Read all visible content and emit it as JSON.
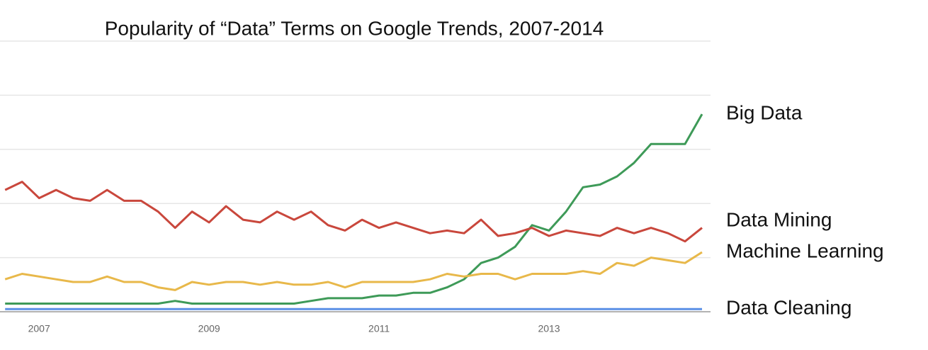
{
  "chart_data": {
    "type": "line",
    "title": "Popularity of “Data” Terms on Google Trends, 2007-2014",
    "x": [
      2006.6,
      2006.8,
      2007.0,
      2007.2,
      2007.4,
      2007.6,
      2007.8,
      2008.0,
      2008.2,
      2008.4,
      2008.6,
      2008.8,
      2009.0,
      2009.2,
      2009.4,
      2009.6,
      2009.8,
      2010.0,
      2010.2,
      2010.4,
      2010.6,
      2010.8,
      2011.0,
      2011.2,
      2011.4,
      2011.6,
      2011.8,
      2012.0,
      2012.2,
      2012.4,
      2012.6,
      2012.8,
      2013.0,
      2013.2,
      2013.4,
      2013.6,
      2013.8,
      2014.0,
      2014.2,
      2014.4,
      2014.6,
      2014.8
    ],
    "series": [
      {
        "name": "Big Data",
        "color": "#3e9a58",
        "values": [
          3,
          3,
          3,
          3,
          3,
          3,
          3,
          3,
          3,
          3,
          4,
          3,
          3,
          3,
          3,
          3,
          3,
          3,
          4,
          5,
          5,
          5,
          6,
          6,
          7,
          7,
          9,
          12,
          18,
          20,
          24,
          32,
          30,
          37,
          46,
          47,
          50,
          55,
          62,
          62,
          62,
          73
        ]
      },
      {
        "name": "Data Mining",
        "color": "#c9473c",
        "values": [
          45,
          48,
          42,
          45,
          42,
          41,
          45,
          41,
          41,
          37,
          31,
          37,
          33,
          39,
          34,
          33,
          37,
          34,
          37,
          32,
          30,
          34,
          31,
          33,
          31,
          29,
          30,
          29,
          34,
          28,
          29,
          31,
          28,
          30,
          29,
          28,
          31,
          29,
          31,
          29,
          26,
          31
        ]
      },
      {
        "name": "Machine Learning",
        "color": "#e8b84a",
        "values": [
          12,
          14,
          13,
          12,
          11,
          11,
          13,
          11,
          11,
          9,
          8,
          11,
          10,
          11,
          11,
          10,
          11,
          10,
          10,
          11,
          9,
          11,
          11,
          11,
          11,
          12,
          14,
          13,
          14,
          14,
          12,
          14,
          14,
          14,
          15,
          14,
          18,
          17,
          20,
          19,
          18,
          22
        ]
      },
      {
        "name": "Data Cleaning",
        "color": "#5a8fe6",
        "values": [
          1,
          1,
          1,
          1,
          1,
          1,
          1,
          1,
          1,
          1,
          1,
          1,
          1,
          1,
          1,
          1,
          1,
          1,
          1,
          1,
          1,
          1,
          1,
          1,
          1,
          1,
          1,
          1,
          1,
          1,
          1,
          1,
          1,
          1,
          1,
          1,
          1,
          1,
          1,
          1,
          1,
          1
        ]
      }
    ],
    "xlim": [
      2006.54,
      2014.9
    ],
    "xticks": [
      2007,
      2009,
      2011,
      2013
    ],
    "ylim": [
      0,
      100
    ],
    "yticks": [
      0,
      20,
      40,
      60,
      80,
      100
    ],
    "grid": true
  }
}
